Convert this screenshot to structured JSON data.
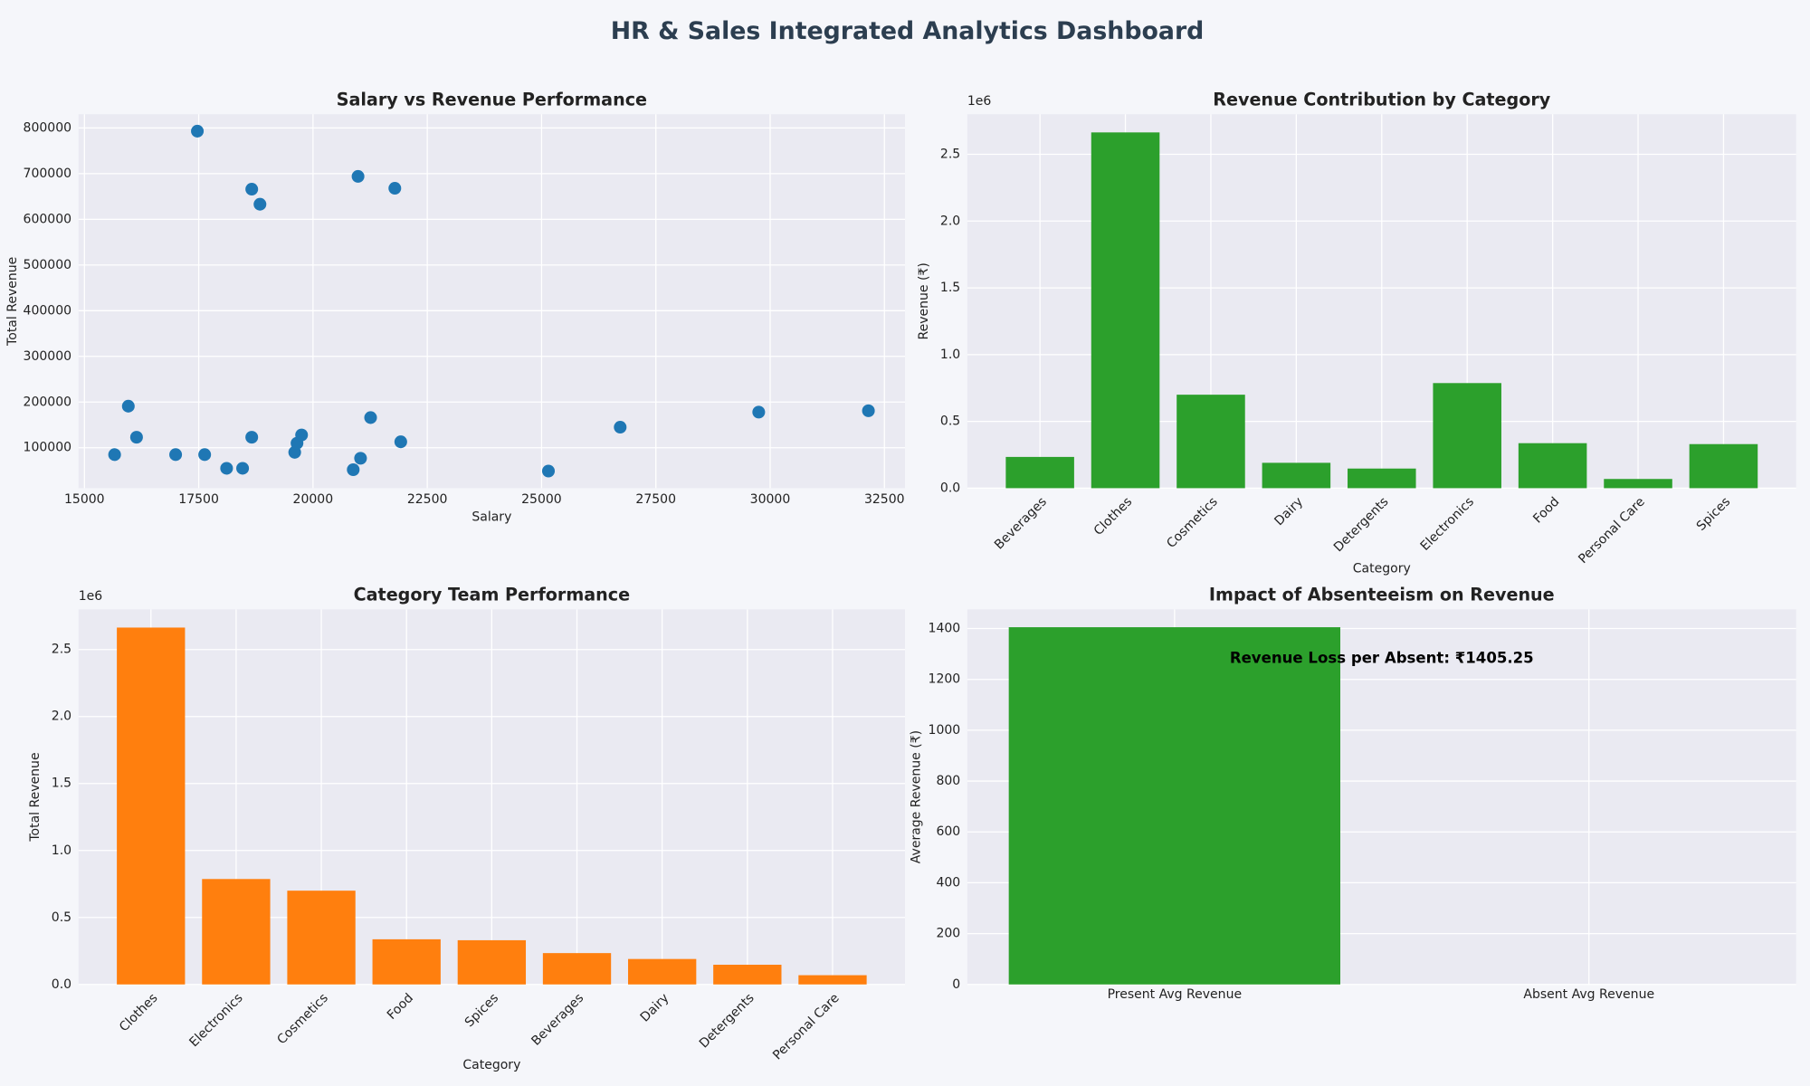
{
  "title": "HR & Sales Integrated Analytics Dashboard",
  "chart_data": [
    {
      "type": "scatter",
      "title": "Salary vs Revenue Performance",
      "xlabel": "Salary",
      "ylabel": "Total Revenue",
      "color": "#1f77b4",
      "grid": true,
      "x": [
        17470,
        18660,
        18840,
        20985,
        21790,
        15960,
        16140,
        15660,
        16995,
        17630,
        18110,
        18460,
        18660,
        19600,
        19650,
        19750,
        20880,
        21040,
        21260,
        21920,
        25150,
        26720,
        29750,
        32150
      ],
      "values": [
        793000,
        666000,
        633000,
        694000,
        668000,
        191000,
        123000,
        85000,
        85000,
        85000,
        55000,
        55000,
        123000,
        90000,
        110000,
        128000,
        52000,
        77000,
        166000,
        113000,
        49000,
        145000,
        178000,
        181000
      ],
      "xlim": [
        14870,
        32950
      ],
      "xticks": [
        15000,
        17500,
        20000,
        22500,
        25000,
        27500,
        30000,
        32500
      ],
      "ylim": [
        11500,
        830000
      ],
      "yticks": [
        100000,
        200000,
        300000,
        400000,
        500000,
        600000,
        700000,
        800000
      ]
    },
    {
      "type": "bar",
      "title": "Revenue Contribution by Category",
      "xlabel": "Category",
      "ylabel": "Revenue (₹)",
      "offset_label": "1e6",
      "color": "#2ca02c",
      "grid": true,
      "rotate_labels": true,
      "categories": [
        "Beverages",
        "Clothes",
        "Cosmetics",
        "Dairy",
        "Detergents",
        "Electronics",
        "Food",
        "Personal Care",
        "Spices"
      ],
      "values": [
        0.234,
        2.664,
        0.7,
        0.19,
        0.147,
        0.787,
        0.337,
        0.069,
        0.33
      ],
      "ylim": [
        0,
        2.8
      ],
      "yticks": [
        {
          "value": 0,
          "label": "0.0"
        },
        0.5,
        {
          "value": 1,
          "label": "1.0"
        },
        1.5,
        {
          "value": 2,
          "label": "2.0"
        },
        2.5
      ]
    },
    {
      "type": "bar",
      "title": "Category Team Performance",
      "xlabel": "Category",
      "ylabel": "Total Revenue",
      "offset_label": "1e6",
      "color": "#ff7f0e",
      "grid": true,
      "rotate_labels": true,
      "categories": [
        "Clothes",
        "Electronics",
        "Cosmetics",
        "Food",
        "Spices",
        "Beverages",
        "Dairy",
        "Detergents",
        "Personal Care"
      ],
      "values": [
        2.664,
        0.787,
        0.7,
        0.337,
        0.33,
        0.234,
        0.19,
        0.147,
        0.069
      ],
      "ylim": [
        0,
        2.8
      ],
      "yticks": [
        {
          "value": 0,
          "label": "0.0"
        },
        0.5,
        {
          "value": 1,
          "label": "1.0"
        },
        1.5,
        {
          "value": 2,
          "label": "2.0"
        },
        2.5
      ]
    },
    {
      "type": "bar",
      "title": "Impact of Absenteeism on Revenue",
      "ylabel": "Average Revenue (₹)",
      "color": "#2ca02c",
      "grid": true,
      "rotate_labels": false,
      "annotation": "Revenue Loss per Absent: ₹1405.25",
      "categories": [
        "Present Avg Revenue",
        "Absent Avg Revenue"
      ],
      "values": [
        1405.25,
        0
      ],
      "ylim": [
        0,
        1475.5
      ],
      "yticks": [
        0,
        200,
        400,
        600,
        800,
        1000,
        1200,
        1400
      ]
    }
  ]
}
